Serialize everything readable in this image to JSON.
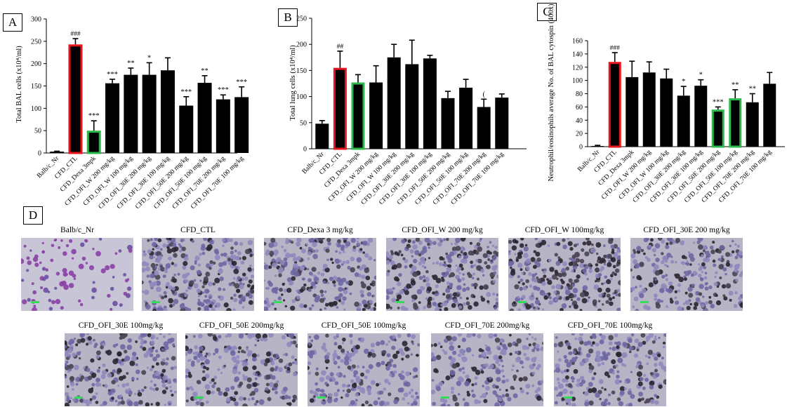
{
  "panels": {
    "a": "A",
    "b": "B",
    "c": "C",
    "d": "D"
  },
  "colors": {
    "bar": "#000000",
    "ctl_outline": "#e8161c",
    "highlight_outline": "#2db84b",
    "scale_bar": "#33dd55"
  },
  "chart_data": [
    {
      "type": "bar",
      "id": "A",
      "title": "",
      "xlabel": "",
      "ylabel": "Total BAL cells (x10⁴/ml)",
      "ylim": [
        0,
        300
      ],
      "yticks": [
        0,
        50,
        100,
        150,
        200,
        250,
        300
      ],
      "categories": [
        "Balb/c_Nr",
        "CFD_CTL",
        "CFD_Dexa 3mpk",
        "CFD_OFI_W 200 mg/kg",
        "CFD_OFI_W 100 mg/kg",
        "CFD_OFI_30E 200 mg/kg",
        "CFD_OFI_30E 100 mg/kg",
        "CFD_OFI_50E 200 mg/kg",
        "CFD_OFI_50E 100 mg/kg",
        "CFD_OFI_70E 200 mg/kg",
        "CFD_OFI_70E 100 mg/kg"
      ],
      "values": [
        3,
        243,
        50,
        156,
        175,
        175,
        185,
        106,
        157,
        120,
        125
      ],
      "errors": [
        1,
        13,
        22,
        9,
        15,
        27,
        28,
        20,
        16,
        10,
        23
      ],
      "annotations": [
        "",
        "###",
        "***",
        "***",
        "**",
        "*",
        "",
        "***",
        "**",
        "***",
        "***"
      ],
      "outline": [
        "",
        "red",
        "green",
        "",
        "",
        "",
        "",
        "",
        "",
        "",
        ""
      ]
    },
    {
      "type": "bar",
      "id": "B",
      "title": "",
      "xlabel": "",
      "ylabel": "Total lung cells (x10⁴/ml)",
      "ylim": [
        0,
        250
      ],
      "yticks": [
        0,
        50,
        100,
        150,
        200,
        250
      ],
      "categories": [
        "Balb/c_Nr",
        "CFD_CTL",
        "CFD_Dexa 3mpk",
        "CFD_OFI_W 200 mg/kg",
        "CFD_OFI_W 100 mg/kg",
        "CFD_OFI_30E 200 mg/kg",
        "CFD_OFI_30E 100 mg/kg",
        "CFD_OFI_50E 200 mg/kg",
        "CFD_OFI_50E 100 mg/kg",
        "CFD_OFI_70E 200 mg/kg",
        "CFD_OFI_70E 100 mg/kg"
      ],
      "values": [
        48,
        155,
        127,
        127,
        175,
        162,
        173,
        97,
        117,
        80,
        98
      ],
      "errors": [
        6,
        32,
        15,
        32,
        25,
        46,
        6,
        13,
        16,
        15,
        7
      ],
      "annotations": [
        "",
        "##",
        "",
        "",
        "",
        "",
        "",
        "",
        "",
        "(",
        ""
      ],
      "outline": [
        "",
        "red",
        "green",
        "",
        "",
        "",
        "",
        "",
        "",
        "",
        ""
      ]
    },
    {
      "type": "bar",
      "id": "C",
      "title": "",
      "xlabel": "",
      "ylabel": "Neutrophil/eosinophils average No. of BAL cytospin (400x)",
      "ylim": [
        0,
        160
      ],
      "yticks": [
        0,
        20,
        40,
        60,
        80,
        100,
        120,
        140,
        160
      ],
      "categories": [
        "Balb/c_Nr",
        "CFD_CTL",
        "CFD_Dexa 3mpk",
        "CFD_OFI_W 200 mg/kg",
        "CFD_OFI_W 100 mg/kg",
        "CFD_OFI_30E 200 mg/kg",
        "CFD_OFI_30E 100 mg/kg",
        "CFD_OFI_50E 200 mg/kg",
        "CFD_OFI_50E 100 mg/kg",
        "CFD_OFI_70E 200 mg/kg",
        "CFD_OFI_70E 100 mg/kg"
      ],
      "values": [
        1,
        128,
        105,
        112,
        103,
        77,
        92,
        56,
        73,
        67,
        95
      ],
      "errors": [
        1,
        14,
        24,
        16,
        14,
        14,
        9,
        4,
        13,
        13,
        17
      ],
      "annotations": [
        "",
        "###",
        "",
        "",
        "",
        "*",
        "*",
        "***",
        "**",
        "**",
        ""
      ],
      "outline": [
        "",
        "red",
        "",
        "",
        "",
        "",
        "",
        "green",
        "green",
        "",
        ""
      ]
    }
  ],
  "micrographs": [
    {
      "label": "Balb/c_Nr",
      "density": 0.12,
      "dark": 0.05
    },
    {
      "label": "CFD_CTL",
      "density": 1.0,
      "dark": 0.35
    },
    {
      "label": "CFD_Dexa  3 mg/kg",
      "density": 0.85,
      "dark": 0.35
    },
    {
      "label": "CFD_OFI_W 200 mg/kg",
      "density": 0.95,
      "dark": 0.45
    },
    {
      "label": "CFD_OFI_W 100mg/kg",
      "density": 1.0,
      "dark": 0.55
    },
    {
      "label": "CFD_OFI_30E 200 mg/kg",
      "density": 0.75,
      "dark": 0.3
    },
    {
      "label": "CFD_OFI_30E 100mg/kg",
      "density": 0.8,
      "dark": 0.35
    },
    {
      "label": "CFD_OFI_50E 200mg/kg",
      "density": 0.7,
      "dark": 0.35
    },
    {
      "label": "CFD_OFI_50E 100mg/kg",
      "density": 0.7,
      "dark": 0.25
    },
    {
      "label": "CFD_OFI_70E 200mg/kg",
      "density": 0.65,
      "dark": 0.25
    },
    {
      "label": "CFD_OFI_70E 100mg/kg",
      "density": 0.75,
      "dark": 0.3
    }
  ]
}
